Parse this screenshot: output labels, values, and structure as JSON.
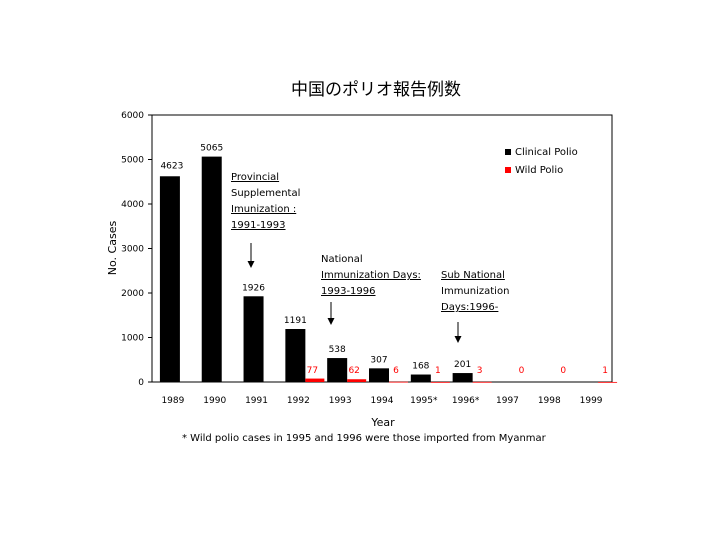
{
  "chart_data": {
    "type": "bar",
    "title": "中国のポリオ報告例数",
    "xlabel": "Year",
    "ylabel": "No. Cases",
    "ylim": [
      0,
      6000
    ],
    "yticks": [
      "0",
      "1000",
      "2000",
      "3000",
      "4000",
      "5000",
      "6000"
    ],
    "categories": [
      "1989",
      "1990",
      "1991",
      "1992",
      "1993",
      "1994",
      "1995*",
      "1996*",
      "1997",
      "1998",
      "1999"
    ],
    "series": [
      {
        "name": "Clinical Polio",
        "color": "#000000",
        "values": [
          4623,
          5065,
          1926,
          1191,
          538,
          307,
          168,
          201,
          null,
          null,
          null
        ],
        "labels": [
          "4623",
          "5065",
          "1926",
          "1191",
          "538",
          "307",
          "168",
          "201",
          "",
          "",
          ""
        ]
      },
      {
        "name": "Wild Polio",
        "color": "#ff0000",
        "values": [
          null,
          null,
          null,
          77,
          62,
          6,
          1,
          3,
          0,
          0,
          1
        ],
        "labels": [
          "",
          "",
          "",
          "77",
          "62",
          "6",
          "1",
          "3",
          "0",
          "0",
          "1"
        ]
      }
    ],
    "legend_position": "top-right",
    "annotations": [
      {
        "lines": [
          "Provincial",
          "Supplemental",
          "Imunization :",
          "1991-1993"
        ],
        "underline": [
          true,
          false,
          true,
          true
        ],
        "category": "1991",
        "arrow": true
      },
      {
        "lines": [
          "National",
          "Immunization Days:",
          "1993-1996"
        ],
        "underline": [
          false,
          true,
          true
        ],
        "category": "1993",
        "arrow": true
      },
      {
        "lines": [
          "Sub National",
          "Immunization",
          "Days:1996-"
        ],
        "underline": [
          true,
          false,
          true
        ],
        "category": "1996*",
        "arrow": true
      }
    ],
    "footnote": "* Wild polio cases in 1995 and 1996 were those imported from Myanmar"
  }
}
